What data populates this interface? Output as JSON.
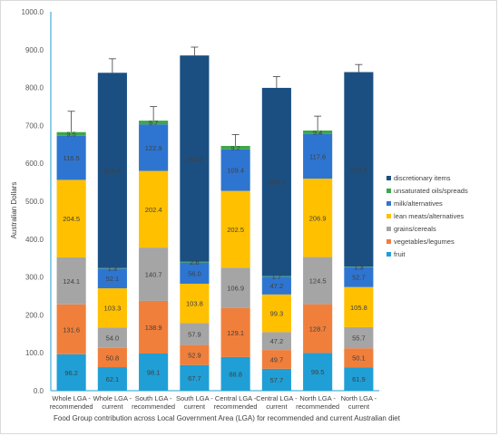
{
  "chart_data": {
    "type": "bar",
    "stacked": true,
    "title": "",
    "xlabel": "Food Group contribution across Local Government Area (LGA) for recommended and current Australian diet",
    "ylabel": "Australian Dollars",
    "ylim": [
      0,
      1000
    ],
    "y_ticks": [
      "0.0",
      "100.0",
      "200.0",
      "300.0",
      "400.0",
      "500.0",
      "600.0",
      "700.0",
      "800.0",
      "900.0",
      "1000.0"
    ],
    "grid": false,
    "legend_position": "right",
    "categories": [
      [
        "Whole LGA -",
        "recommended"
      ],
      [
        "Whole LGA -",
        "current"
      ],
      [
        "South LGA -",
        "recommended"
      ],
      [
        "South LGA -",
        "current"
      ],
      [
        "Central LGA -",
        "recommended"
      ],
      [
        "Central LGA -",
        "current"
      ],
      [
        "North LGA -",
        "recommended"
      ],
      [
        "North LGA -",
        "current"
      ]
    ],
    "series": [
      {
        "name": "fruit",
        "color": "#1f9fd6",
        "values": [
          96.2,
          62.1,
          98.1,
          67.7,
          88.8,
          57.7,
          99.5,
          61.9
        ],
        "labels": [
          "96.2",
          "62.1",
          "98.1",
          "67.7",
          "88.8",
          "57.7",
          "99.5",
          "61.9"
        ]
      },
      {
        "name": "vegetables/legumes",
        "color": "#f07f3c",
        "values": [
          131.6,
          50.8,
          138.9,
          52.9,
          129.1,
          49.7,
          128.7,
          50.1
        ],
        "labels": [
          "131.6",
          "50.8",
          "138.9",
          "52.9",
          "129.1",
          "49.7",
          "128.7",
          "50.1"
        ]
      },
      {
        "name": "grains/cereals",
        "color": "#a5a5a5",
        "values": [
          124.1,
          54.0,
          140.7,
          57.9,
          106.9,
          47.2,
          124.5,
          55.7
        ],
        "labels": [
          "124.1",
          "54.0",
          "140.7",
          "57.9",
          "106.9",
          "47.2",
          "124.5",
          "55.7"
        ]
      },
      {
        "name": "lean meats/alternatives",
        "color": "#ffc000",
        "values": [
          204.5,
          103.3,
          202.4,
          103.8,
          202.5,
          99.3,
          206.9,
          105.8
        ],
        "labels": [
          "204.5",
          "103.3",
          "202.4",
          "103.8",
          "202.5",
          "99.3",
          "206.9",
          "105.8"
        ]
      },
      {
        "name": "milk/alternatives",
        "color": "#2e75d1",
        "values": [
          116.5,
          52.1,
          122.9,
          56.0,
          109.4,
          47.2,
          117.6,
          52.7
        ],
        "labels": [
          "116.5",
          "52.1",
          "122.9",
          "56.0",
          "109.4",
          "47.2",
          "117.6",
          "52.7"
        ]
      },
      {
        "name": "unsaturated oils/spreads",
        "color": "#3fa64a",
        "values": [
          9.5,
          1.3,
          9.7,
          2.6,
          9.2,
          1.7,
          9.4,
          1.3
        ],
        "labels": [
          "9.5",
          "1.3",
          "9.7",
          "2.6",
          "9.2",
          "1.7",
          "9.4",
          "1.3"
        ]
      },
      {
        "name": "discretionary items",
        "color": "#1b4f82",
        "values": [
          0,
          515.4,
          0,
          543.8,
          0,
          496.4,
          0,
          513.3
        ],
        "labels": [
          "",
          "515.4",
          "",
          "543.8",
          "",
          "496.4",
          "",
          "513.3"
        ]
      }
    ],
    "error_bars": [
      55,
      37,
      37,
      22,
      30,
      30,
      38,
      20
    ]
  }
}
